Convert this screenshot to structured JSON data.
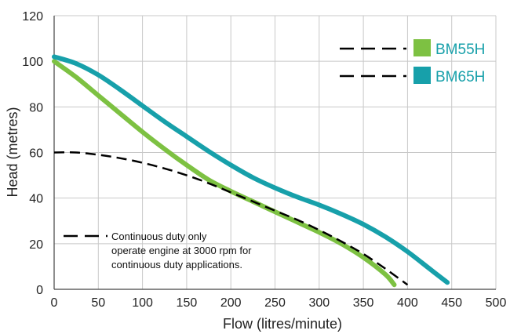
{
  "chart_data": {
    "type": "line",
    "xlabel": "Flow (litres/minute)",
    "ylabel": "Head (metres)",
    "xlim": [
      0,
      500
    ],
    "ylim": [
      0,
      120
    ],
    "xticks": [
      "0",
      "50",
      "100",
      "150",
      "200",
      "250",
      "300",
      "350",
      "400",
      "450",
      "500"
    ],
    "yticks": [
      "0",
      "20",
      "40",
      "60",
      "80",
      "100",
      "120"
    ],
    "grid": true,
    "legend_position": "top-right",
    "series": [
      {
        "name": "BM55H",
        "color": "#7dc142",
        "style": "solid",
        "x": [
          0,
          25,
          50,
          75,
          100,
          125,
          150,
          175,
          200,
          225,
          250,
          275,
          300,
          325,
          350,
          375,
          385
        ],
        "y": [
          100,
          93,
          85,
          77,
          69,
          61.5,
          54.5,
          48,
          43,
          38.5,
          34,
          29.5,
          25,
          20,
          14,
          6.5,
          2
        ]
      },
      {
        "name": "BM65H",
        "color": "#17a0aa",
        "style": "solid",
        "x": [
          0,
          25,
          50,
          75,
          100,
          125,
          150,
          175,
          200,
          225,
          250,
          275,
          300,
          325,
          350,
          375,
          400,
          425,
          445
        ],
        "y": [
          102,
          99,
          94,
          87.5,
          80.5,
          73.5,
          67,
          60.5,
          54.5,
          49,
          44.5,
          40.5,
          37,
          33,
          28.5,
          23,
          16.5,
          9,
          3
        ]
      },
      {
        "name": "Continuous duty only",
        "color": "#000000",
        "style": "dashed",
        "x": [
          0,
          25,
          50,
          75,
          100,
          125,
          150,
          175,
          200,
          225,
          250,
          275,
          300,
          325,
          350,
          375,
          400
        ],
        "y": [
          60,
          60,
          59,
          57.5,
          55.5,
          53,
          50,
          46.5,
          42.5,
          38.5,
          34.5,
          30.5,
          26,
          21,
          15.5,
          9,
          2
        ]
      }
    ],
    "legend": [
      {
        "label": "BM55H",
        "color": "#7dc142"
      },
      {
        "label": "BM65H",
        "color": "#17a0aa"
      }
    ],
    "annotation": [
      "Continuous duty only",
      "operate engine at 3000 rpm for",
      "continuous duty applications."
    ]
  }
}
